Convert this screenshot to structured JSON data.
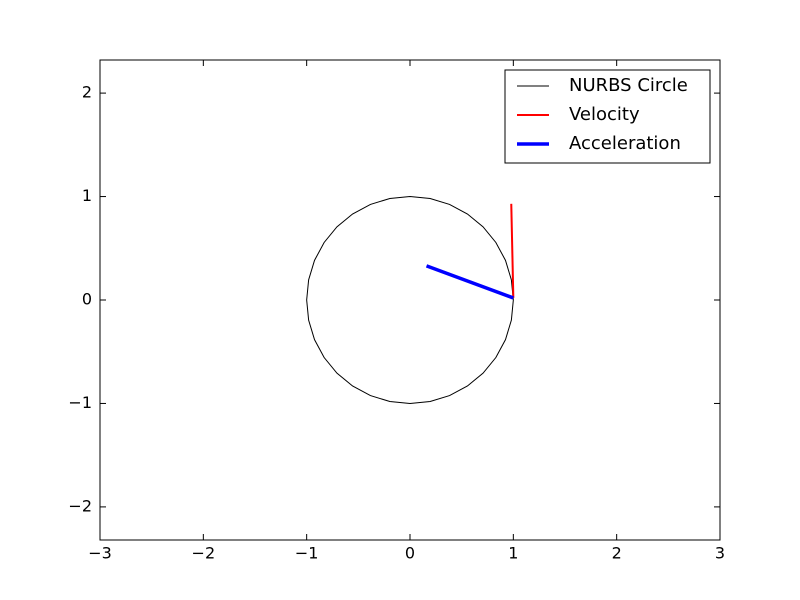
{
  "chart_data": {
    "type": "line",
    "xlim": [
      -3,
      3
    ],
    "ylim": [
      -2.32,
      2.32
    ],
    "xticks": [
      {
        "value": -3,
        "label": "−3"
      },
      {
        "value": -2,
        "label": "−2"
      },
      {
        "value": -1,
        "label": "−1"
      },
      0,
      1,
      2,
      3
    ],
    "yticks": [
      {
        "value": -2,
        "label": "−2"
      },
      {
        "value": -1,
        "label": "−1"
      },
      0,
      1,
      2
    ],
    "legend": "upper right",
    "series": [
      {
        "name": "NURBS Circle",
        "color": "#000000",
        "linewidth": 1,
        "x": [
          1,
          0.981,
          0.924,
          0.831,
          0.707,
          0.556,
          0.383,
          0.195,
          0,
          -0.195,
          -0.383,
          -0.556,
          -0.707,
          -0.831,
          -0.924,
          -0.981,
          -1,
          -0.981,
          -0.924,
          -0.831,
          -0.707,
          -0.556,
          -0.383,
          -0.195,
          0,
          0.195,
          0.383,
          0.556,
          0.707,
          0.831,
          0.924,
          0.981,
          1
        ],
        "values": [
          0,
          0.195,
          0.383,
          0.556,
          0.707,
          0.831,
          0.924,
          0.981,
          1,
          0.981,
          0.924,
          0.831,
          0.707,
          0.556,
          0.383,
          0.195,
          0,
          -0.195,
          -0.383,
          -0.556,
          -0.707,
          -0.831,
          -0.924,
          -0.981,
          -1,
          -0.981,
          -0.924,
          -0.831,
          -0.707,
          -0.556,
          -0.383,
          -0.195,
          0
        ]
      },
      {
        "name": "Velocity",
        "color": "#ff0000",
        "linewidth": 2,
        "x": [
          1.0,
          0.98
        ],
        "values": [
          0.02,
          0.93
        ]
      },
      {
        "name": "Acceleration",
        "color": "#0000ff",
        "linewidth": 3.5,
        "x": [
          1.0,
          0.16
        ],
        "values": [
          0.02,
          0.33
        ]
      }
    ]
  }
}
